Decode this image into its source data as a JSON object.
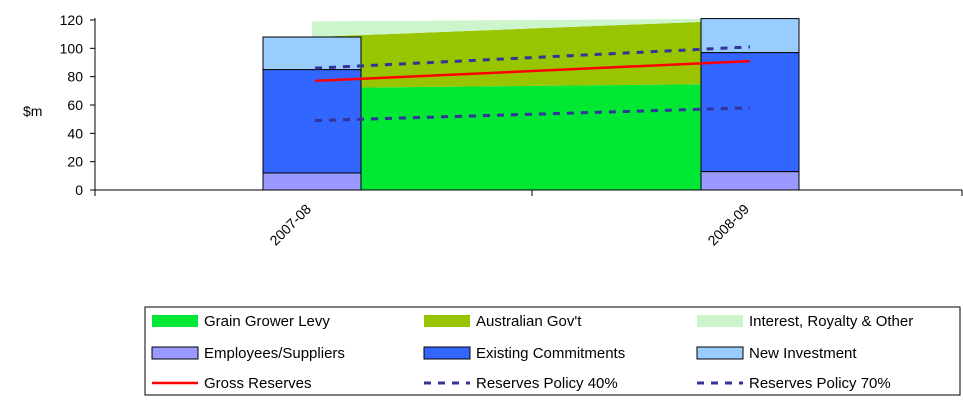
{
  "chart_data": {
    "type": "bar",
    "title": "",
    "ylabel": "$m",
    "xlabel": "",
    "ylim": [
      0,
      120
    ],
    "yticks": [
      0,
      20,
      40,
      60,
      80,
      100,
      120
    ],
    "grid": false,
    "legend_position": "bottom",
    "categories": [
      "2007-08",
      "2008-09"
    ],
    "income_areas": [
      {
        "name": "Grain Grower Levy",
        "color": "#00e833",
        "values": [
          72,
          75
        ]
      },
      {
        "name": "Australian Gov't",
        "color": "#99c400",
        "values": [
          36,
          45
        ]
      },
      {
        "name": "Interest, Royalty & Other",
        "color": "#ccf5cc",
        "values": [
          11,
          1
        ]
      }
    ],
    "expenditure_bars": [
      {
        "name": "Employees/Suppliers",
        "color": "#9999ff",
        "values": [
          12,
          13
        ]
      },
      {
        "name": "Existing Commitments",
        "color": "#3366ff",
        "values": [
          73,
          84
        ]
      },
      {
        "name": "New Investment",
        "color": "#99ccff",
        "values": [
          23,
          24
        ]
      }
    ],
    "lines": [
      {
        "name": "Gross Reserves",
        "color": "#ff0000",
        "style": "solid",
        "values": [
          77,
          91
        ]
      },
      {
        "name": "Reserves Policy 40%",
        "color": "#333399",
        "style": "dashed",
        "values": [
          49,
          58
        ]
      },
      {
        "name": "Reserves Policy 70%",
        "color": "#333399",
        "style": "dashed",
        "values": [
          86,
          101
        ]
      }
    ],
    "legend": [
      {
        "label": "Grain Grower Levy",
        "kind": "area",
        "color": "#00e833"
      },
      {
        "label": "Australian Gov't",
        "kind": "area",
        "color": "#99c400"
      },
      {
        "label": "Interest, Royalty & Other",
        "kind": "area",
        "color": "#ccf5cc"
      },
      {
        "label": "Employees/Suppliers",
        "kind": "bar",
        "color": "#9999ff"
      },
      {
        "label": "Existing Commitments",
        "kind": "bar",
        "color": "#3366ff"
      },
      {
        "label": "New Investment",
        "kind": "bar",
        "color": "#99ccff"
      },
      {
        "label": "Gross Reserves",
        "kind": "solid",
        "color": "#ff0000"
      },
      {
        "label": "Reserves Policy 40%",
        "kind": "dashed",
        "color": "#333399"
      },
      {
        "label": "Reserves Policy 70%",
        "kind": "dashed",
        "color": "#333399"
      }
    ]
  }
}
